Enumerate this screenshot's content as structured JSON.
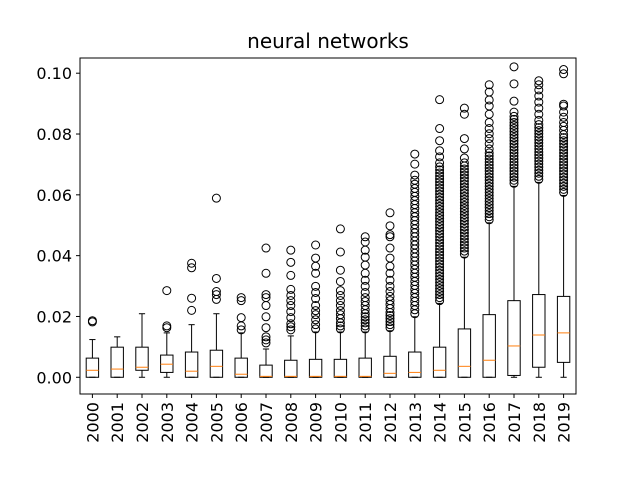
{
  "chart_data": {
    "type": "box",
    "title": "neural networks",
    "xlabel": "",
    "ylabel": "",
    "ylim": [
      -0.0055,
      0.105
    ],
    "yticks": [
      0.0,
      0.02,
      0.04,
      0.06,
      0.08,
      0.1
    ],
    "ytick_labels": [
      "0.00",
      "0.02",
      "0.04",
      "0.06",
      "0.08",
      "0.10"
    ],
    "categories": [
      "2000",
      "2001",
      "2002",
      "2003",
      "2004",
      "2005",
      "2006",
      "2007",
      "2008",
      "2009",
      "2010",
      "2011",
      "2012",
      "2013",
      "2014",
      "2015",
      "2016",
      "2017",
      "2018",
      "2019"
    ],
    "boxes": [
      {
        "label": "2000",
        "whislo": 0.0,
        "q1": 0.0,
        "med": 0.0023,
        "q3": 0.0063,
        "whishi": 0.0124,
        "fliers": [
          0.0182,
          0.0186
        ]
      },
      {
        "label": "2001",
        "whislo": 0.0,
        "q1": 0.0,
        "med": 0.0027,
        "q3": 0.0099,
        "whishi": 0.0133,
        "fliers": []
      },
      {
        "label": "2002",
        "whislo": 0.0,
        "q1": 0.0023,
        "med": 0.0033,
        "q3": 0.0099,
        "whishi": 0.0209,
        "fliers": []
      },
      {
        "label": "2003",
        "whislo": 0.0,
        "q1": 0.0016,
        "med": 0.0043,
        "q3": 0.0073,
        "whishi": 0.0146,
        "fliers": [
          0.0163,
          0.0169,
          0.0285
        ]
      },
      {
        "label": "2004",
        "whislo": 0.0,
        "q1": 0.0,
        "med": 0.002,
        "q3": 0.0083,
        "whishi": 0.0173,
        "fliers": [
          0.022,
          0.026,
          0.036,
          0.0375
        ]
      },
      {
        "label": "2005",
        "whislo": 0.0,
        "q1": 0.0,
        "med": 0.0036,
        "q3": 0.0089,
        "whishi": 0.0209,
        "fliers": [
          0.0256,
          0.0272,
          0.0282,
          0.0325,
          0.0589
        ]
      },
      {
        "label": "2006",
        "whislo": 0.0,
        "q1": 0.0,
        "med": 0.001,
        "q3": 0.0063,
        "whishi": 0.0146,
        "fliers": [
          0.0156,
          0.0169,
          0.0196,
          0.0252,
          0.0262
        ]
      },
      {
        "label": "2007",
        "whislo": 0.0,
        "q1": 0.0,
        "med": 0.0003,
        "q3": 0.004,
        "whishi": 0.0093,
        "fliers": [
          0.0113,
          0.0123,
          0.0133,
          0.0163,
          0.0199,
          0.0236,
          0.0262,
          0.0272,
          0.0342,
          0.0425
        ]
      },
      {
        "label": "2008",
        "whislo": 0.0,
        "q1": 0.0,
        "med": 0.0003,
        "q3": 0.0056,
        "whishi": 0.0136,
        "fliers": [
          0.0156,
          0.0166,
          0.0176,
          0.0196,
          0.0216,
          0.0236,
          0.0252,
          0.0269,
          0.0289,
          0.0335,
          0.0378,
          0.0418
        ]
      },
      {
        "label": "2009",
        "whislo": 0.0,
        "q1": 0.0,
        "med": 0.0003,
        "q3": 0.0059,
        "whishi": 0.0149,
        "fliers": [
          0.0159,
          0.0173,
          0.0189,
          0.0206,
          0.0219,
          0.0236,
          0.0259,
          0.0279,
          0.0299,
          0.0342,
          0.0365,
          0.0392,
          0.0435
        ]
      },
      {
        "label": "2010",
        "whislo": 0.0,
        "q1": 0.0,
        "med": 0.0003,
        "q3": 0.0059,
        "whishi": 0.0149,
        "fliers": [
          0.0159,
          0.0169,
          0.0179,
          0.0193,
          0.0206,
          0.0219,
          0.0236,
          0.0252,
          0.0269,
          0.0285,
          0.0315,
          0.0352,
          0.0412,
          0.0488
        ]
      },
      {
        "label": "2011",
        "whislo": 0.0,
        "q1": 0.0,
        "med": 0.0003,
        "q3": 0.0063,
        "whishi": 0.0149,
        "fliers": [
          0.0159,
          0.0169,
          0.0179,
          0.0189,
          0.0199,
          0.0209,
          0.0222,
          0.0236,
          0.0249,
          0.0262,
          0.0279,
          0.0299,
          0.0319,
          0.0342,
          0.0369,
          0.0395,
          0.0418,
          0.0445,
          0.0462
        ]
      },
      {
        "label": "2012",
        "whislo": 0.0,
        "q1": 0.0,
        "med": 0.0013,
        "q3": 0.0069,
        "whishi": 0.0153,
        "fliers": [
          0.0163,
          0.0173,
          0.0183,
          0.0193,
          0.0203,
          0.0213,
          0.0226,
          0.0239,
          0.0252,
          0.0266,
          0.0282,
          0.0299,
          0.0319,
          0.0342,
          0.0365,
          0.0392,
          0.0425,
          0.0462,
          0.0469,
          0.0498,
          0.0541
        ]
      },
      {
        "label": "2013",
        "whislo": 0.0,
        "q1": 0.0,
        "med": 0.0016,
        "q3": 0.0083,
        "whishi": 0.0199,
        "fliers": [
          0.0209,
          0.0222,
          0.0236,
          0.0249,
          0.0262,
          0.0276,
          0.0289,
          0.0302,
          0.0315,
          0.0329,
          0.0342,
          0.0355,
          0.0369,
          0.0382,
          0.0395,
          0.0408,
          0.0422,
          0.0435,
          0.0448,
          0.0462,
          0.0475,
          0.0488,
          0.0502,
          0.0515,
          0.0528,
          0.0541,
          0.0555,
          0.0568,
          0.0581,
          0.0595,
          0.0608,
          0.0621,
          0.0635,
          0.0648,
          0.0665,
          0.0701,
          0.0734
        ]
      },
      {
        "label": "2014",
        "whislo": 0.0,
        "q1": 0.0,
        "med": 0.0023,
        "q3": 0.0099,
        "whishi": 0.0243,
        "fliers": [
          0.0252,
          0.0262,
          0.0272,
          0.0282,
          0.0292,
          0.0302,
          0.0312,
          0.0322,
          0.0332,
          0.0342,
          0.0352,
          0.0362,
          0.0372,
          0.0382,
          0.0392,
          0.0402,
          0.0412,
          0.0422,
          0.0432,
          0.0442,
          0.0452,
          0.0462,
          0.0472,
          0.0482,
          0.0492,
          0.0502,
          0.0512,
          0.0522,
          0.0532,
          0.0542,
          0.0552,
          0.0562,
          0.0572,
          0.0582,
          0.0592,
          0.0602,
          0.0612,
          0.0622,
          0.0632,
          0.0642,
          0.0652,
          0.0662,
          0.0672,
          0.0682,
          0.0692,
          0.0705,
          0.0725,
          0.0745,
          0.0778,
          0.0818,
          0.0913
        ]
      },
      {
        "label": "2015",
        "whislo": 0.0,
        "q1": 0.0,
        "med": 0.0036,
        "q3": 0.0159,
        "whishi": 0.0395,
        "fliers": [
          0.0405,
          0.0415,
          0.0425,
          0.0435,
          0.0445,
          0.0455,
          0.0465,
          0.0475,
          0.0485,
          0.0495,
          0.0505,
          0.0515,
          0.0525,
          0.0535,
          0.0545,
          0.0555,
          0.0565,
          0.0575,
          0.0585,
          0.0595,
          0.0605,
          0.0615,
          0.0625,
          0.0635,
          0.0645,
          0.0655,
          0.0665,
          0.0675,
          0.0685,
          0.0695,
          0.0705,
          0.0721,
          0.0751,
          0.0785,
          0.0865,
          0.0885
        ]
      },
      {
        "label": "2016",
        "whislo": 0.0,
        "q1": 0.0,
        "med": 0.0056,
        "q3": 0.0206,
        "whishi": 0.0508,
        "fliers": [
          0.0518,
          0.0528,
          0.0538,
          0.0548,
          0.0558,
          0.0568,
          0.0578,
          0.0588,
          0.0598,
          0.0608,
          0.0618,
          0.0628,
          0.0638,
          0.0648,
          0.0658,
          0.0668,
          0.0678,
          0.0688,
          0.0698,
          0.0708,
          0.0718,
          0.0728,
          0.0738,
          0.0751,
          0.0768,
          0.0785,
          0.0801,
          0.0818,
          0.0838,
          0.0865,
          0.0892,
          0.0912,
          0.0938,
          0.0962
        ]
      },
      {
        "label": "2017",
        "whislo": 0.0,
        "q1": 0.0006,
        "med": 0.0103,
        "q3": 0.0252,
        "whishi": 0.0628,
        "fliers": [
          0.0638,
          0.0648,
          0.0658,
          0.0668,
          0.0678,
          0.0688,
          0.0698,
          0.0708,
          0.0718,
          0.0728,
          0.0738,
          0.0748,
          0.0758,
          0.0768,
          0.0778,
          0.0788,
          0.0798,
          0.0808,
          0.0818,
          0.0828,
          0.0838,
          0.0848,
          0.0858,
          0.0872,
          0.0908,
          0.0965,
          0.1021
        ]
      },
      {
        "label": "2018",
        "whislo": 0.0,
        "q1": 0.0033,
        "med": 0.0139,
        "q3": 0.0272,
        "whishi": 0.0641,
        "fliers": [
          0.0651,
          0.0661,
          0.0671,
          0.0681,
          0.0691,
          0.0701,
          0.0711,
          0.0721,
          0.0731,
          0.0741,
          0.0751,
          0.0761,
          0.0771,
          0.0781,
          0.0791,
          0.0801,
          0.0811,
          0.0821,
          0.0831,
          0.0845,
          0.0865,
          0.0885,
          0.0905,
          0.0925,
          0.0945,
          0.0962,
          0.0975
        ]
      },
      {
        "label": "2019",
        "whislo": 0.0,
        "q1": 0.0049,
        "med": 0.0146,
        "q3": 0.0266,
        "whishi": 0.0598,
        "fliers": [
          0.0608,
          0.0618,
          0.0628,
          0.0638,
          0.0648,
          0.0658,
          0.0668,
          0.0678,
          0.0688,
          0.0698,
          0.0708,
          0.0718,
          0.0728,
          0.0738,
          0.0748,
          0.0758,
          0.0768,
          0.0778,
          0.0788,
          0.0798,
          0.0812,
          0.0825,
          0.0838,
          0.0855,
          0.0872,
          0.0892,
          0.0898,
          0.0998,
          0.1012
        ]
      }
    ],
    "colors": {
      "box": "#000000",
      "median": "#ff7f0e",
      "flier": "#000000",
      "background": "#ffffff"
    },
    "grid": false,
    "legend": "none"
  }
}
